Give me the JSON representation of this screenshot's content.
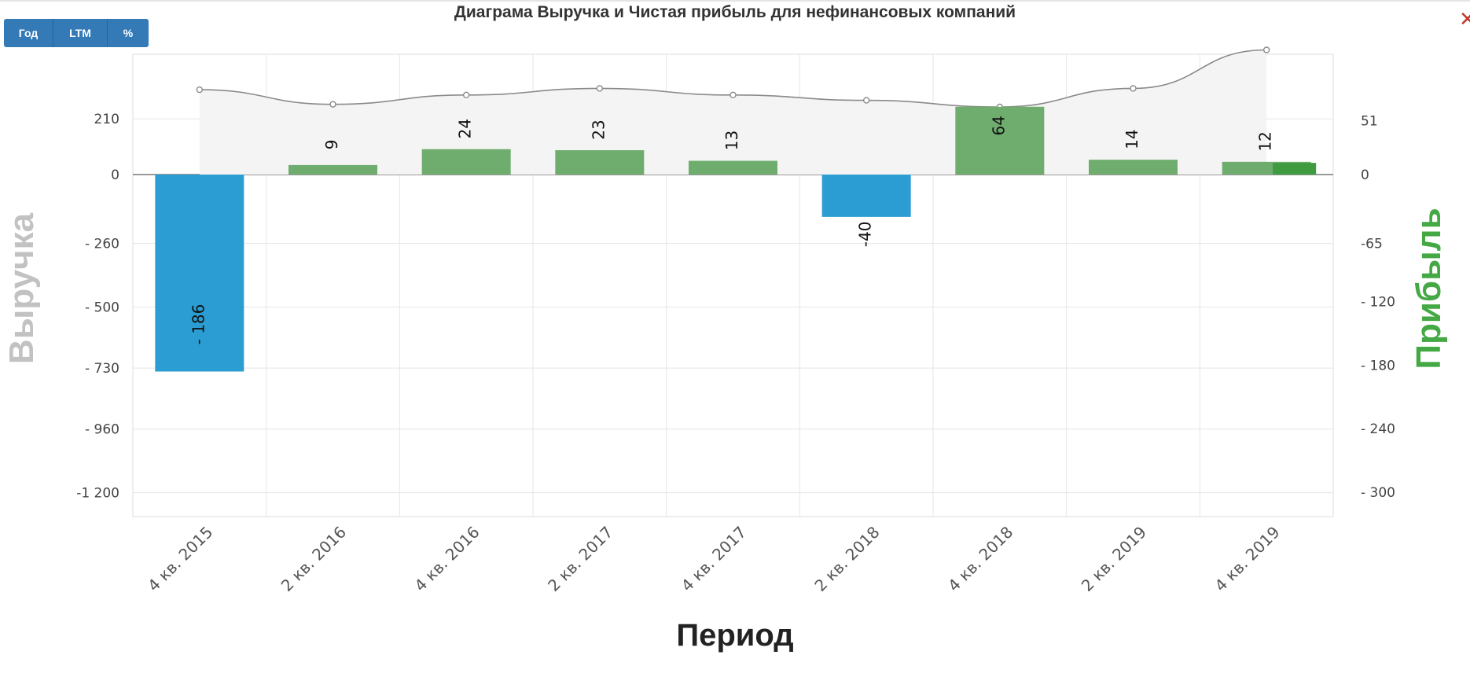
{
  "toolbar": {
    "year_label": "Год",
    "ltm_label": "LTM",
    "percent_label": "%"
  },
  "close_glyph": "✕",
  "chart_data": {
    "type": "bar",
    "title": "Диаграма Выручка и Чистая прибыль для нефинансовых компаний",
    "xlabel": "Период",
    "ylabel_left": "Выручка",
    "ylabel_right": "Прибыль",
    "categories": [
      "4 кв. 2015",
      "2 кв. 2016",
      "4 кв. 2016",
      "2 кв. 2017",
      "4 кв. 2017",
      "2 кв. 2018",
      "4 кв. 2018",
      "2 кв. 2019",
      "4 кв. 2019"
    ],
    "left_axis": {
      "ticks": [
        210,
        0,
        -260,
        -500,
        -730,
        -960,
        -1200
      ],
      "tick_labels": [
        "210",
        "0",
        "- 260",
        "- 500",
        "- 730",
        "- 960",
        "-1 200"
      ]
    },
    "right_axis": {
      "ticks": [
        51,
        0,
        -65,
        -120,
        -180,
        -240,
        -300
      ],
      "tick_labels": [
        "51",
        "0",
        "-65",
        "- 120",
        "- 180",
        "- 240",
        "- 300"
      ]
    },
    "series": [
      {
        "name": "Прибыль",
        "type": "bar",
        "axis": "right",
        "values": [
          -186,
          9,
          24,
          23,
          13,
          -40,
          64,
          14,
          12
        ],
        "data_labels": [
          "- 186",
          "9",
          "24",
          "23",
          "13",
          "-40",
          "64",
          "14",
          "12"
        ]
      },
      {
        "name": "Выручка",
        "type": "area",
        "axis": "left",
        "values": [
          320,
          265,
          300,
          325,
          300,
          280,
          255,
          325,
          470
        ]
      }
    ],
    "extra_bar": {
      "category": "4 кв. 2019",
      "axis": "right",
      "value": 11
    },
    "colors": {
      "positive": "#6fad6f",
      "negative": "#2b9dd2",
      "extra": "#3f9b3f",
      "area_fill": "#f4f4f4",
      "area_line": "#8a8a8a"
    },
    "grid": true
  }
}
